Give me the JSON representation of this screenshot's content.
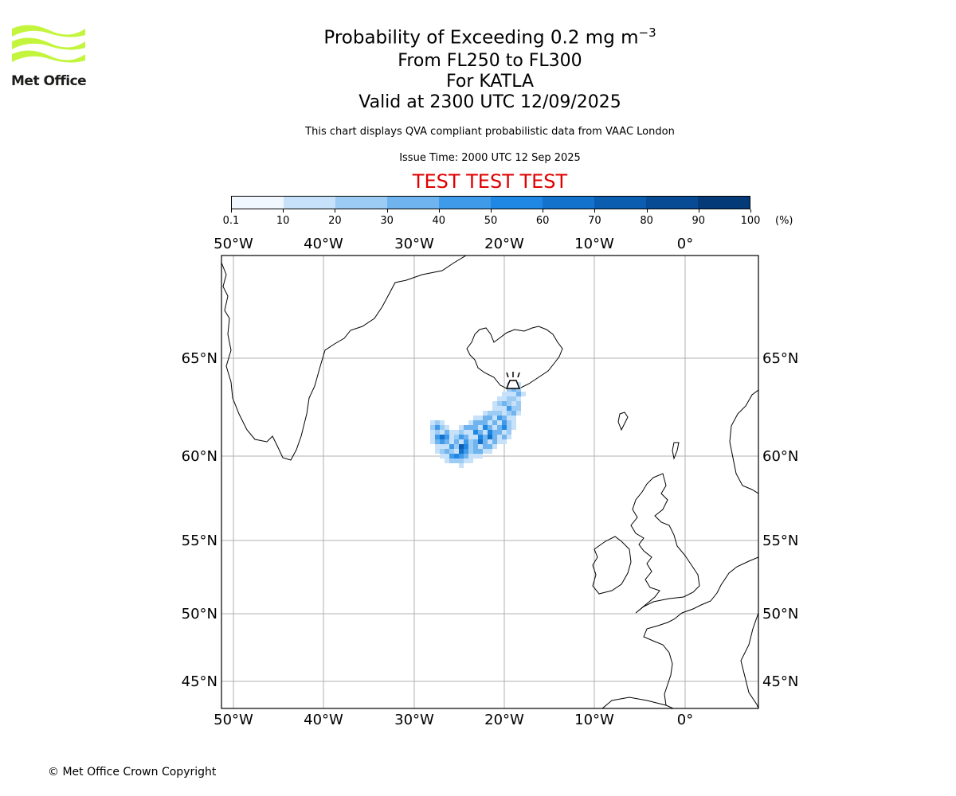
{
  "logo": {
    "name": "Met Office",
    "icon": "met-office-wave-logo",
    "color": "#c3f53c"
  },
  "header": {
    "title_main": "Probability of Exceeding 0.2 mg m",
    "title_superscript": "−3",
    "subtitle_levels": "From FL250 to FL300",
    "subtitle_volcano": "For KATLA",
    "subtitle_valid": "Valid at 2300 UTC 12/09/2025",
    "description": "This chart displays QVA compliant probabilistic data from VAAC London",
    "issue_time": "Issue Time: 2000 UTC 12 Sep 2025",
    "test_banner": "TEST TEST TEST",
    "test_color": "#e00000"
  },
  "colorbar": {
    "ticks": [
      "0.1",
      "10",
      "20",
      "30",
      "40",
      "50",
      "60",
      "70",
      "80",
      "90",
      "100"
    ],
    "unit": "(%)",
    "colors": [
      "#f0f7fe",
      "#c6e1f9",
      "#9ccbf4",
      "#6fb3ef",
      "#3f9bea",
      "#1f88e4",
      "#1272cc",
      "#0b5db0",
      "#074b94",
      "#043a78",
      "#01285b"
    ]
  },
  "map": {
    "lon_labels": [
      "50°W",
      "40°W",
      "30°W",
      "20°W",
      "10°W",
      "0°"
    ],
    "lat_labels": [
      "65°N",
      "60°N",
      "55°N",
      "50°N",
      "45°N"
    ],
    "volcano_marker": {
      "name": "KATLA",
      "lon": -19.05,
      "lat": 63.63,
      "icon": "volcano-icon"
    }
  },
  "footer": {
    "copyright": "© Met Office Crown Copyright"
  }
}
